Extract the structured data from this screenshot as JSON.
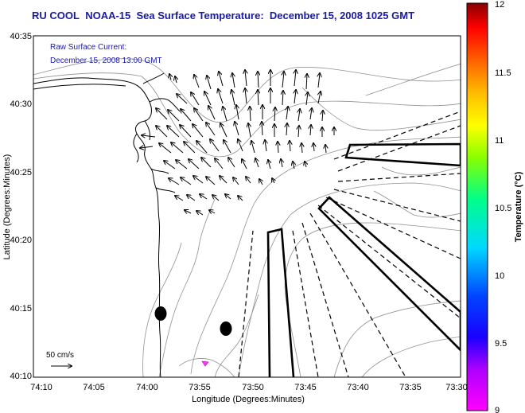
{
  "title": {
    "program": "RU COOL",
    "satellite": "NOAA-15",
    "product": "Sea Surface Temperature:",
    "datetime": "December 15, 2008 1025 GMT"
  },
  "overlay": {
    "line1": "Raw Surface Current:",
    "line2": "December 15, 2008 13:00 GMT"
  },
  "axes": {
    "xlabel": "Longitude (Degrees:Minutes)",
    "ylabel": "Latitude (Degrees:Minutes)",
    "xticks": [
      "74:10",
      "74:05",
      "74:00",
      "73:55",
      "73:50",
      "73:45",
      "73:40",
      "73:35",
      "73:30"
    ],
    "yticks": [
      "40:35",
      "40:30",
      "40:25",
      "40:20",
      "40:15",
      "40:10"
    ]
  },
  "scale": {
    "label": "50 cm/s"
  },
  "colorbar": {
    "label": "Temperature (°C)",
    "ticks": [
      "12",
      "11.5",
      "11",
      "10.5",
      "10",
      "9.5",
      "9"
    ],
    "min": 9,
    "max": 12
  },
  "colors": {
    "title": "#1a1aa0",
    "coast": "#000000",
    "bathy": "#909090"
  }
}
